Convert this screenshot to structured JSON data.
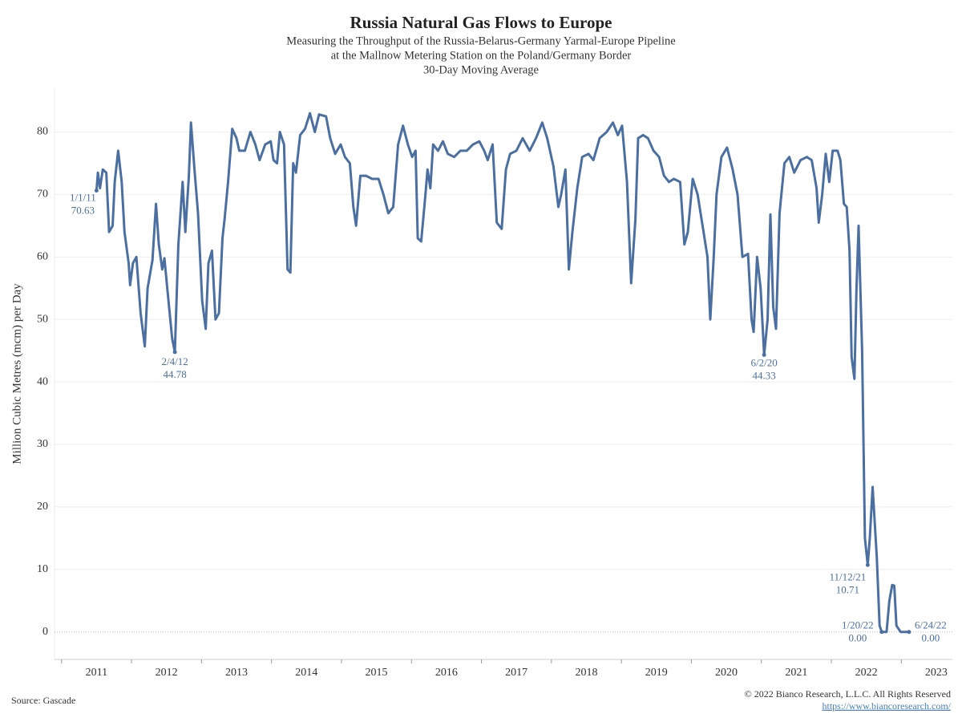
{
  "chart_data": {
    "type": "line",
    "title": "Russia Natural Gas Flows to Europe",
    "subtitle": [
      "Measuring the Throughput of the Russia-Belarus-Germany Yarmal-Europe Pipeline",
      "at the Mallnow Metering Station on the Poland/Germany Border",
      "30-Day Moving Average"
    ],
    "y_label": "Million Cubic Metres (mcm) per Day",
    "source": "Source: Gascade",
    "copyright": "© 2022 Bianco Research, L.L.C. All Rights Reserved",
    "url": "https://www.biancoresearch.com/",
    "xlim": [
      2010.4,
      2023.23
    ],
    "xticks": [
      2011,
      2012,
      2013,
      2014,
      2015,
      2016,
      2017,
      2018,
      2019,
      2020,
      2021,
      2022,
      2023
    ],
    "ylim": [
      -4.4,
      87
    ],
    "yticks": [
      0,
      10,
      20,
      30,
      40,
      50,
      60,
      70,
      80
    ],
    "grid": true,
    "series": [
      {
        "color": "#4a6fa0",
        "x": [
          2011.0,
          2011.02,
          2011.05,
          2011.09,
          2011.14,
          2011.18,
          2011.23,
          2011.26,
          2011.31,
          2011.36,
          2011.4,
          2011.46,
          2011.48,
          2011.52,
          2011.57,
          2011.63,
          2011.69,
          2011.73,
          2011.8,
          2011.85,
          2011.89,
          2011.94,
          2011.97,
          2012.02,
          2012.08,
          2012.12,
          2012.17,
          2012.23,
          2012.27,
          2012.32,
          2012.35,
          2012.4,
          2012.45,
          2012.51,
          2012.56,
          2012.6,
          2012.65,
          2012.7,
          2012.75,
          2012.8,
          2012.83,
          2012.88,
          2012.94,
          2013.0,
          2013.04,
          2013.12,
          2013.2,
          2013.27,
          2013.33,
          2013.41,
          2013.49,
          2013.53,
          2013.58,
          2013.62,
          2013.68,
          2013.73,
          2013.77,
          2013.81,
          2013.85,
          2013.91,
          2013.98,
          2014.05,
          2014.12,
          2014.18,
          2014.28,
          2014.34,
          2014.41,
          2014.49,
          2014.55,
          2014.62,
          2014.67,
          2014.71,
          2014.77,
          2014.85,
          2014.94,
          2015.03,
          2015.1,
          2015.17,
          2015.24,
          2015.31,
          2015.38,
          2015.45,
          2015.51,
          2015.56,
          2015.59,
          2015.64,
          2015.7,
          2015.73,
          2015.77,
          2015.81,
          2015.88,
          2015.95,
          2016.02,
          2016.11,
          2016.2,
          2016.29,
          2016.38,
          2016.47,
          2016.54,
          2016.59,
          2016.66,
          2016.72,
          2016.79,
          2016.85,
          2016.91,
          2017.0,
          2017.09,
          2017.19,
          2017.28,
          2017.37,
          2017.44,
          2017.53,
          2017.6,
          2017.64,
          2017.7,
          2017.75,
          2017.8,
          2017.87,
          2017.94,
          2018.03,
          2018.1,
          2018.19,
          2018.29,
          2018.38,
          2018.45,
          2018.51,
          2018.58,
          2018.64,
          2018.7,
          2018.74,
          2018.81,
          2018.88,
          2018.96,
          2019.04,
          2019.11,
          2019.18,
          2019.25,
          2019.34,
          2019.4,
          2019.45,
          2019.52,
          2019.59,
          2019.66,
          2019.73,
          2019.77,
          2019.82,
          2019.86,
          2019.93,
          2020.01,
          2020.09,
          2020.16,
          2020.23,
          2020.31,
          2020.36,
          2020.39,
          2020.44,
          2020.49,
          2020.54,
          2020.59,
          2020.63,
          2020.67,
          2020.71,
          2020.76,
          2020.83,
          2020.9,
          2020.97,
          2021.06,
          2021.15,
          2021.22,
          2021.29,
          2021.32,
          2021.37,
          2021.42,
          2021.47,
          2021.52,
          2021.59,
          2021.63,
          2021.68,
          2021.72,
          2021.76,
          2021.79,
          2021.83,
          2021.86,
          2021.89,
          2021.94,
          2021.98,
          2022.02,
          2022.05,
          2022.09,
          2022.15,
          2022.19,
          2022.22,
          2022.29,
          2022.33,
          2022.37,
          2022.4,
          2022.43,
          2022.49,
          2022.61
        ],
        "values": [
          70.63,
          73.5,
          71,
          74,
          73.5,
          64,
          65,
          72,
          77,
          72,
          64,
          59,
          55.5,
          59,
          60,
          51,
          45.7,
          55,
          59.5,
          68.5,
          62,
          58,
          59.8,
          54,
          47,
          44.78,
          62,
          72,
          64,
          73,
          81.5,
          74,
          67,
          53,
          48.5,
          59,
          61,
          50,
          51,
          63,
          66,
          72,
          80.5,
          79,
          77,
          77,
          80,
          78,
          75.5,
          78,
          78.5,
          75.5,
          75,
          80,
          78,
          58,
          57.5,
          75,
          73.5,
          79.5,
          80.5,
          83,
          80,
          82.8,
          82.5,
          79,
          76.5,
          78,
          76,
          75,
          68,
          65,
          73,
          73,
          72.5,
          72.5,
          70,
          67,
          68,
          78,
          81,
          78,
          76,
          77,
          63,
          62.5,
          70,
          74,
          71,
          78,
          77,
          78.5,
          76.5,
          76,
          77,
          77,
          78,
          78.5,
          77,
          75.5,
          78,
          65.5,
          64.5,
          74,
          76.5,
          77,
          79,
          77,
          79,
          81.5,
          79,
          74.5,
          68,
          70,
          74,
          58,
          64,
          71,
          76,
          76.5,
          75.5,
          79,
          80,
          81.5,
          79.5,
          81,
          72,
          55.8,
          66,
          79,
          79.5,
          79,
          77,
          76,
          73,
          72,
          72.5,
          72,
          62,
          64,
          72.5,
          70,
          65,
          60,
          50,
          60,
          70,
          76,
          77.5,
          74,
          70,
          60,
          60.5,
          50,
          48,
          60,
          55,
          44.33,
          50,
          66.8,
          52,
          48.5,
          67,
          75,
          76,
          73.5,
          75.5,
          76,
          75.5,
          71,
          65.5,
          70,
          76.5,
          72,
          77,
          77,
          75.5,
          68.5,
          68,
          61,
          44,
          40.5,
          55,
          65,
          45,
          15,
          10.71,
          15,
          23.2,
          12,
          1,
          0,
          0,
          5,
          7.5,
          7.4,
          1,
          0,
          0
        ]
      }
    ],
    "annotations": [
      {
        "date": "1/1/11",
        "x": 2011.0,
        "value": 70.63
      },
      {
        "date": "2/4/12",
        "x": 2012.12,
        "value": 44.78
      },
      {
        "date": "6/2/20",
        "x": 2020.54,
        "value": 44.33
      },
      {
        "date": "11/12/21",
        "x": 2022.02,
        "value": 10.71
      },
      {
        "date": "1/20/22",
        "x": 2022.22,
        "value": 0,
        "label": "0.00"
      },
      {
        "date": "6/24/22",
        "x": 2022.61,
        "value": 0,
        "label": "0.00"
      }
    ]
  }
}
